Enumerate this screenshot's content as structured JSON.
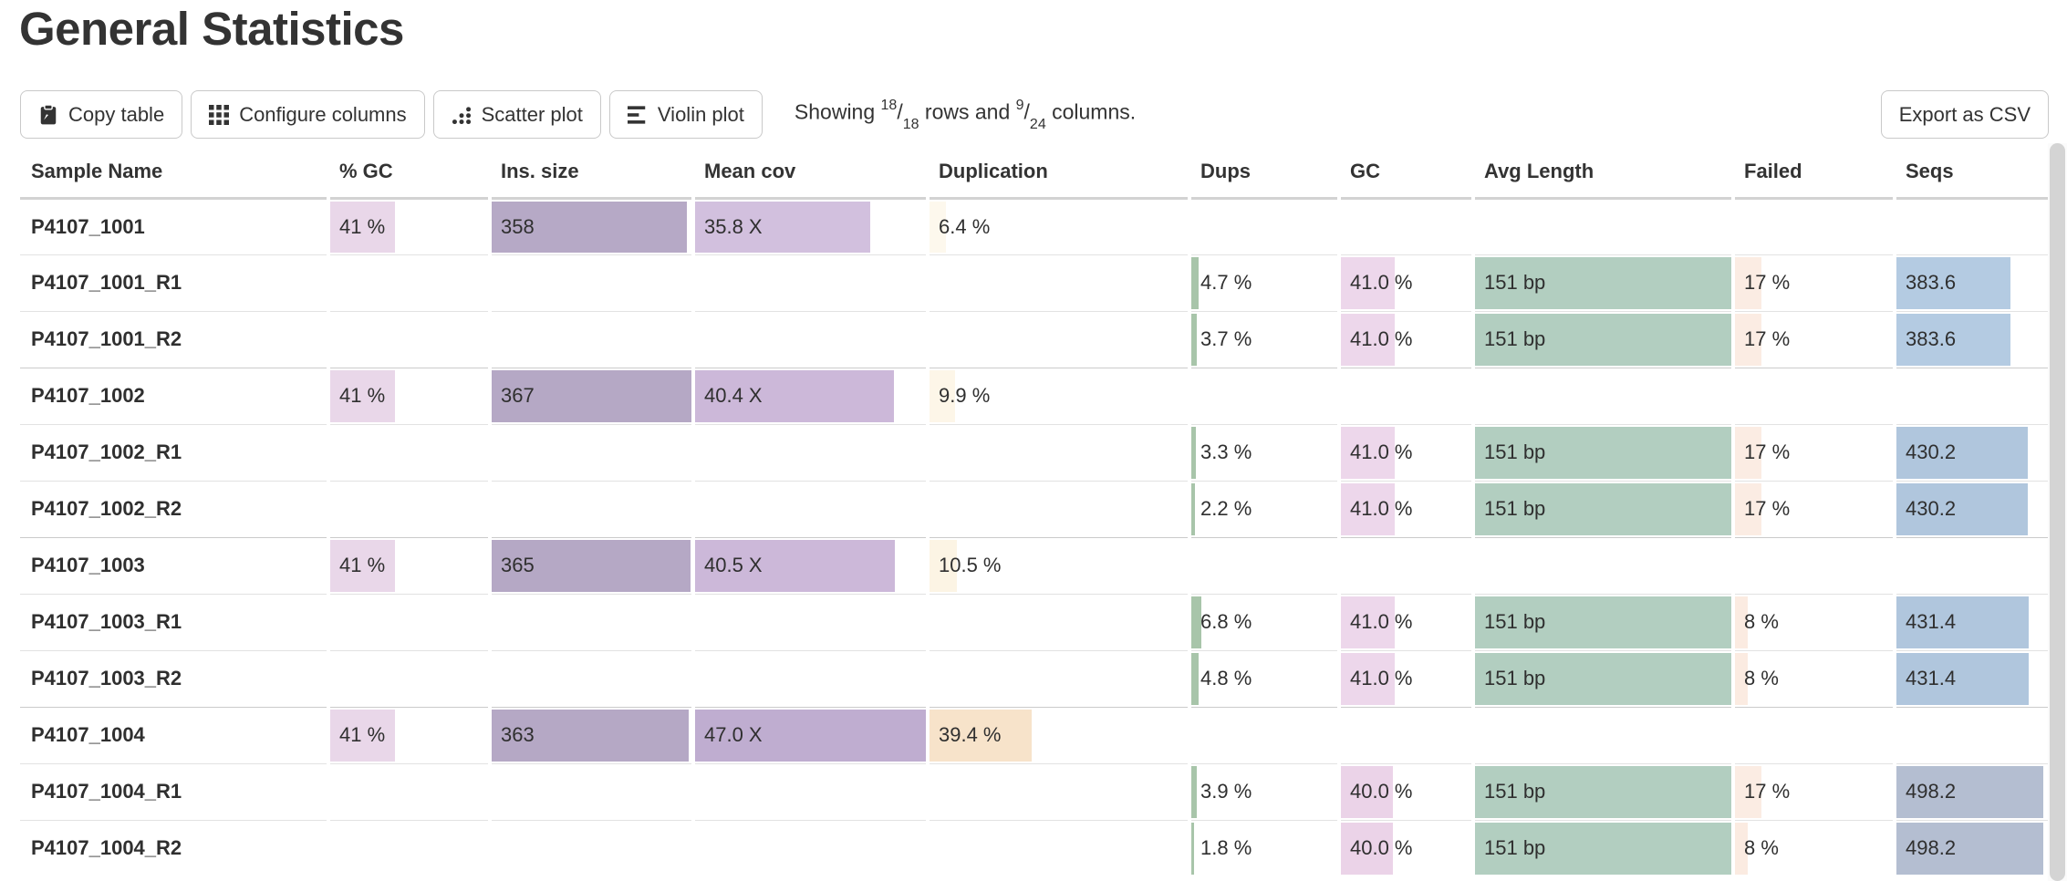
{
  "page": {
    "title": "General Statistics"
  },
  "toolbar": {
    "buttons": [
      {
        "id": "copy-table",
        "label": "Copy table",
        "icon": "clipboard-icon"
      },
      {
        "id": "configure-columns",
        "label": "Configure columns",
        "icon": "grid-icon"
      },
      {
        "id": "scatter-plot",
        "label": "Scatter plot",
        "icon": "scatter-icon"
      },
      {
        "id": "violin-plot",
        "label": "Violin plot",
        "icon": "violin-icon"
      }
    ],
    "showing": {
      "prefix": "Showing",
      "rows_shown": "18",
      "rows_total": "18",
      "middle": "rows and",
      "cols_shown": "9",
      "cols_total": "24",
      "suffix": "columns."
    },
    "export_label": "Export as CSV"
  },
  "table": {
    "columns": [
      {
        "id": "sample",
        "label": "Sample Name"
      },
      {
        "id": "pct_gc",
        "label": "% GC"
      },
      {
        "id": "ins_size",
        "label": "Ins. size"
      },
      {
        "id": "mean_cov",
        "label": "Mean cov"
      },
      {
        "id": "duplication",
        "label": "Duplication"
      },
      {
        "id": "dups",
        "label": "Dups"
      },
      {
        "id": "gc",
        "label": "GC"
      },
      {
        "id": "avg_length",
        "label": "Avg Length"
      },
      {
        "id": "failed",
        "label": "Failed"
      },
      {
        "id": "seqs",
        "label": "Seqs"
      }
    ],
    "rows": [
      {
        "sample": "P4107_1001",
        "group_start": true,
        "cells": {
          "pct_gc": {
            "text": "41 %",
            "frac": 0.41,
            "color": "#e9d7e9"
          },
          "ins_size": {
            "text": "358",
            "frac": 0.975,
            "color": "#b6a9c6"
          },
          "mean_cov": {
            "text": "35.8 X",
            "frac": 0.76,
            "color": "#d2c0de"
          },
          "duplication": {
            "text": "6.4 %",
            "frac": 0.064,
            "color": "#fdf8ed"
          }
        }
      },
      {
        "sample": "P4107_1001_R1",
        "group_start": false,
        "cells": {
          "dups": {
            "text": "4.7 %",
            "frac": 0.047,
            "color": "#a8c5aa"
          },
          "gc": {
            "text": "41.0 %",
            "frac": 0.41,
            "color": "#edd7eb"
          },
          "avg_length": {
            "text": "151 bp",
            "frac": 1.0,
            "color": "#b2cec0"
          },
          "failed": {
            "text": "17 %",
            "frac": 0.17,
            "color": "#fbece3"
          },
          "seqs": {
            "text": "383.6",
            "frac": 0.75,
            "color": "#b4cbe2"
          }
        }
      },
      {
        "sample": "P4107_1001_R2",
        "group_start": false,
        "cells": {
          "dups": {
            "text": "3.7 %",
            "frac": 0.037,
            "color": "#a8c5aa"
          },
          "gc": {
            "text": "41.0 %",
            "frac": 0.41,
            "color": "#edd7eb"
          },
          "avg_length": {
            "text": "151 bp",
            "frac": 1.0,
            "color": "#b2cec0"
          },
          "failed": {
            "text": "17 %",
            "frac": 0.17,
            "color": "#fbece3"
          },
          "seqs": {
            "text": "383.6",
            "frac": 0.75,
            "color": "#b4cbe2"
          }
        }
      },
      {
        "sample": "P4107_1002",
        "group_start": true,
        "cells": {
          "pct_gc": {
            "text": "41 %",
            "frac": 0.41,
            "color": "#e9d7e9"
          },
          "ins_size": {
            "text": "367",
            "frac": 1.0,
            "color": "#b5a8c5"
          },
          "mean_cov": {
            "text": "40.4 X",
            "frac": 0.86,
            "color": "#ccb8d9"
          },
          "duplication": {
            "text": "9.9 %",
            "frac": 0.099,
            "color": "#fdf6e8"
          }
        }
      },
      {
        "sample": "P4107_1002_R1",
        "group_start": false,
        "cells": {
          "dups": {
            "text": "3.3 %",
            "frac": 0.033,
            "color": "#a8c5aa"
          },
          "gc": {
            "text": "41.0 %",
            "frac": 0.41,
            "color": "#edd7eb"
          },
          "avg_length": {
            "text": "151 bp",
            "frac": 1.0,
            "color": "#b2cec0"
          },
          "failed": {
            "text": "17 %",
            "frac": 0.17,
            "color": "#fbece3"
          },
          "seqs": {
            "text": "430.2",
            "frac": 0.87,
            "color": "#b0c6dd"
          }
        }
      },
      {
        "sample": "P4107_1002_R2",
        "group_start": false,
        "cells": {
          "dups": {
            "text": "2.2 %",
            "frac": 0.022,
            "color": "#a8c5aa"
          },
          "gc": {
            "text": "41.0 %",
            "frac": 0.41,
            "color": "#edd7eb"
          },
          "avg_length": {
            "text": "151 bp",
            "frac": 1.0,
            "color": "#b2cec0"
          },
          "failed": {
            "text": "17 %",
            "frac": 0.17,
            "color": "#fbece3"
          },
          "seqs": {
            "text": "430.2",
            "frac": 0.87,
            "color": "#b0c6dd"
          }
        }
      },
      {
        "sample": "P4107_1003",
        "group_start": true,
        "cells": {
          "pct_gc": {
            "text": "41 %",
            "frac": 0.41,
            "color": "#e9d7e9"
          },
          "ins_size": {
            "text": "365",
            "frac": 0.995,
            "color": "#b5a8c5"
          },
          "mean_cov": {
            "text": "40.5 X",
            "frac": 0.865,
            "color": "#ccb8d9"
          },
          "duplication": {
            "text": "10.5 %",
            "frac": 0.105,
            "color": "#fcf4e4"
          }
        }
      },
      {
        "sample": "P4107_1003_R1",
        "group_start": false,
        "cells": {
          "dups": {
            "text": "6.8 %",
            "frac": 0.068,
            "color": "#a8c5aa"
          },
          "gc": {
            "text": "41.0 %",
            "frac": 0.41,
            "color": "#edd7eb"
          },
          "avg_length": {
            "text": "151 bp",
            "frac": 1.0,
            "color": "#b2cec0"
          },
          "failed": {
            "text": "8 %",
            "frac": 0.08,
            "color": "#fbebe1"
          },
          "seqs": {
            "text": "431.4",
            "frac": 0.875,
            "color": "#b0c6dd"
          }
        }
      },
      {
        "sample": "P4107_1003_R2",
        "group_start": false,
        "cells": {
          "dups": {
            "text": "4.8 %",
            "frac": 0.048,
            "color": "#a8c5aa"
          },
          "gc": {
            "text": "41.0 %",
            "frac": 0.41,
            "color": "#edd7eb"
          },
          "avg_length": {
            "text": "151 bp",
            "frac": 1.0,
            "color": "#b2cec0"
          },
          "failed": {
            "text": "8 %",
            "frac": 0.08,
            "color": "#fbebe1"
          },
          "seqs": {
            "text": "431.4",
            "frac": 0.875,
            "color": "#b0c6dd"
          }
        }
      },
      {
        "sample": "P4107_1004",
        "group_start": true,
        "cells": {
          "pct_gc": {
            "text": "41 %",
            "frac": 0.41,
            "color": "#e9d7e9"
          },
          "ins_size": {
            "text": "363",
            "frac": 0.985,
            "color": "#b5a8c5"
          },
          "mean_cov": {
            "text": "47.0 X",
            "frac": 1.0,
            "color": "#bfadd0"
          },
          "duplication": {
            "text": "39.4 %",
            "frac": 0.394,
            "color": "#f7e3ca"
          }
        }
      },
      {
        "sample": "P4107_1004_R1",
        "group_start": false,
        "cells": {
          "dups": {
            "text": "3.9 %",
            "frac": 0.039,
            "color": "#a8c5aa"
          },
          "gc": {
            "text": "40.0 %",
            "frac": 0.4,
            "color": "#ebd3e8"
          },
          "avg_length": {
            "text": "151 bp",
            "frac": 1.0,
            "color": "#b2cec0"
          },
          "failed": {
            "text": "17 %",
            "frac": 0.17,
            "color": "#fbece3"
          },
          "seqs": {
            "text": "498.2",
            "frac": 0.97,
            "color": "#b4bed1"
          }
        }
      },
      {
        "sample": "P4107_1004_R2",
        "group_start": false,
        "cells": {
          "dups": {
            "text": "1.8 %",
            "frac": 0.018,
            "color": "#a8c5aa"
          },
          "gc": {
            "text": "40.0 %",
            "frac": 0.4,
            "color": "#ebd3e8"
          },
          "avg_length": {
            "text": "151 bp",
            "frac": 1.0,
            "color": "#b2cec0"
          },
          "failed": {
            "text": "8 %",
            "frac": 0.08,
            "color": "#fbebe1"
          },
          "seqs": {
            "text": "498.2",
            "frac": 0.97,
            "color": "#b4bed1"
          }
        }
      }
    ]
  },
  "scrollbar": {
    "present": true
  }
}
